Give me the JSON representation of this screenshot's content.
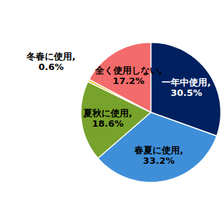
{
  "chart_data": {
    "type": "pie",
    "categories": [
      "一年中使用",
      "春夏に使用",
      "夏秋に使用",
      "冬春に使用",
      "全く使用しない"
    ],
    "values": [
      30.5,
      33.2,
      18.6,
      0.6,
      17.2
    ],
    "value_labels": [
      "一年中使用, 30.5%",
      "春夏に使用, 33.2%",
      "夏秋に使用, 18.6%",
      "冬春に使用, 0.6%",
      "全く使用しない, 17.2%"
    ],
    "colors": [
      "#002060",
      "#3f8fd8",
      "#77a22b",
      "#f2c12e",
      "#f46b6b"
    ],
    "data_labels": true
  }
}
